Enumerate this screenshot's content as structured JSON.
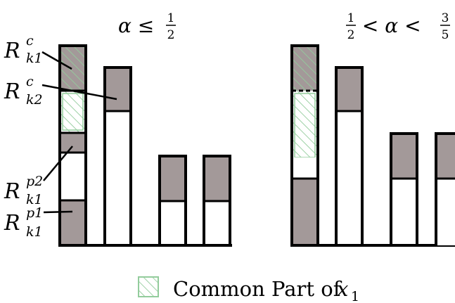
{
  "panels": [
    {
      "id": "left",
      "title": {
        "parts": [
          "α ≤ ",
          "1",
          "2"
        ]
      }
    },
    {
      "id": "right",
      "title": {
        "parts": [
          "1",
          "2",
          " < α < ",
          "3",
          "5"
        ]
      }
    }
  ],
  "labels": {
    "rk1c": {
      "base": "R",
      "sub": "k1",
      "sup": "c"
    },
    "rk2c": {
      "base": "R",
      "sub": "k2",
      "sup": "c"
    },
    "rk1p2": {
      "base": "R",
      "sub": "k1",
      "sup": "p2"
    },
    "rk1p1": {
      "base": "R",
      "sub": "k1",
      "sup": "p1"
    }
  },
  "legend": {
    "text": "Common Part of ",
    "var": "x",
    "sub": "1"
  },
  "colors": {
    "bar_fill": "#a39999",
    "bar_stroke": "#000000",
    "hatch": "#93cc9c",
    "white": "#ffffff"
  }
}
